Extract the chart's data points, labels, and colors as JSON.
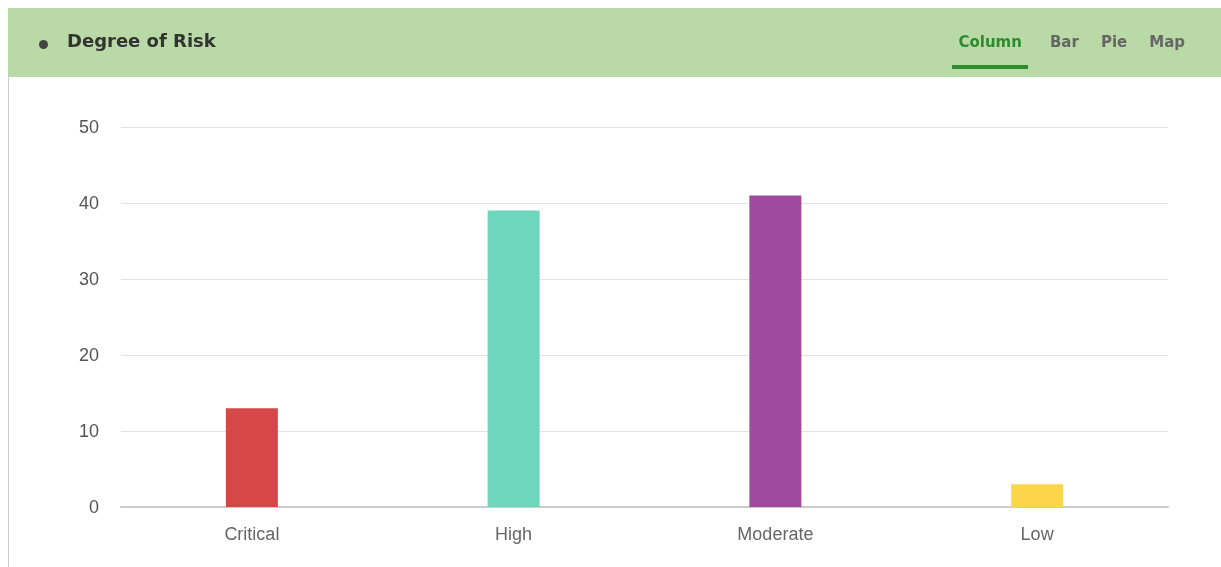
{
  "chart_data": {
    "type": "bar",
    "title": "Degree of Risk",
    "categories": [
      "Critical",
      "High",
      "Moderate",
      "Low"
    ],
    "values": [
      13,
      39,
      41,
      3
    ],
    "colors": [
      "#d64848",
      "#6dd6bd",
      "#a04a9e",
      "#fdd54a"
    ],
    "ylim": [
      0,
      50
    ],
    "yticks": [
      0,
      10,
      20,
      30,
      40,
      50
    ],
    "grid": "y",
    "annotations": [
      "Column",
      "Bar",
      "Pie",
      "Map"
    ]
  }
}
